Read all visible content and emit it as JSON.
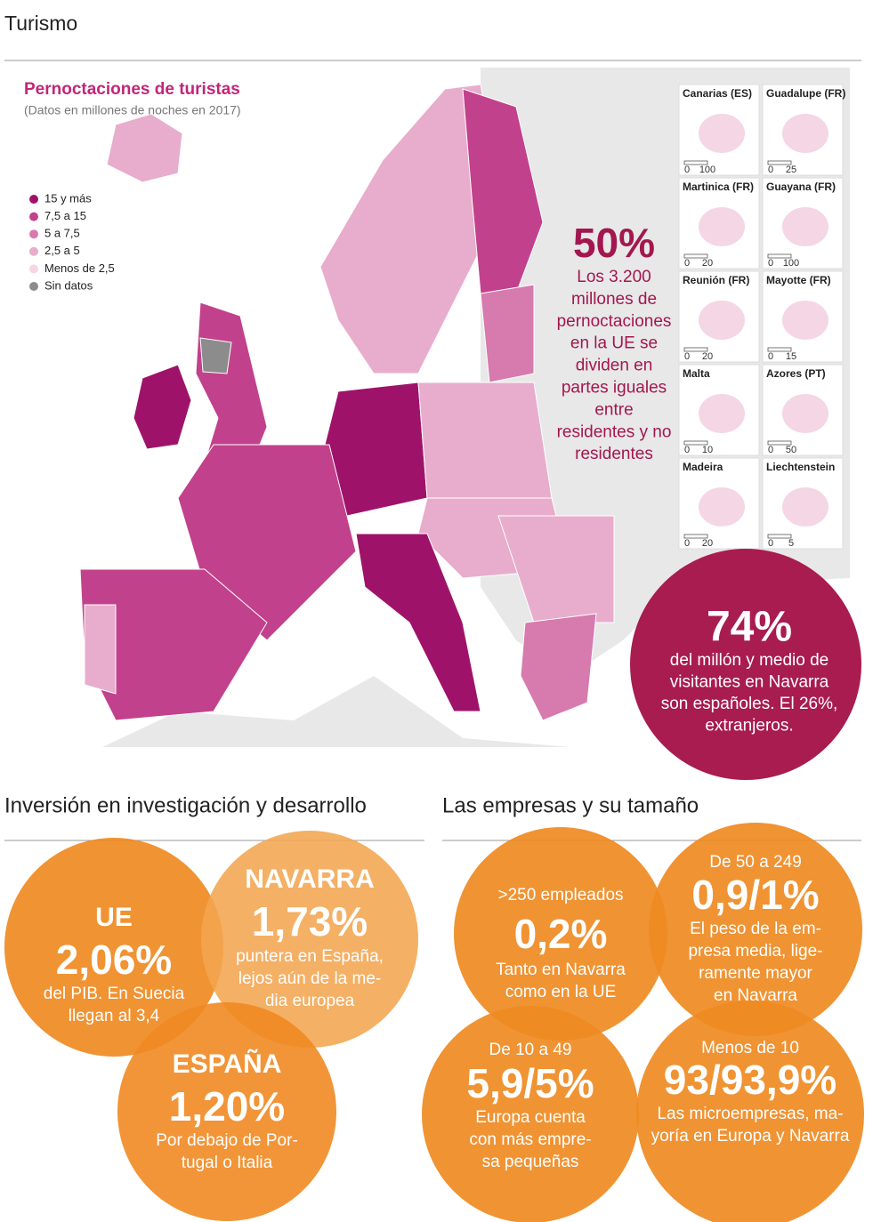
{
  "tourism": {
    "title": "Turismo",
    "map_title": "Pernoctaciones de turistas",
    "map_subtitle": "(Datos en millones de noches en 2017)",
    "legend": [
      {
        "label": "15 y más",
        "color": "#9e1369"
      },
      {
        "label": "7,5 a 15",
        "color": "#c2418c"
      },
      {
        "label": "5 a 7,5",
        "color": "#d77aae"
      },
      {
        "label": "2,5 a 5",
        "color": "#e8adcc"
      },
      {
        "label": "Menos de 2,5",
        "color": "#f4d6e5"
      },
      {
        "label": "Sin datos",
        "color": "#8c8c8c"
      }
    ],
    "stat_eu": {
      "value": "50%",
      "lines": [
        "Los 3.200",
        "millones de",
        "pernoctaciones",
        "en la UE se",
        "dividen en",
        "partes iguales",
        "entre",
        "residentes y no",
        "residentes"
      ]
    },
    "stat_navarra": {
      "value": "74%",
      "lines": [
        "del millón y medio de",
        "visitantes en Navarra",
        "son españoles. El 26%,",
        "extranjeros."
      ]
    },
    "insets": [
      {
        "name": "Canarias (ES)",
        "scale": [
          "0",
          "100"
        ]
      },
      {
        "name": "Guadalupe (FR)",
        "scale": [
          "0",
          "25"
        ]
      },
      {
        "name": "Martinica (FR)",
        "scale": [
          "0",
          "20"
        ]
      },
      {
        "name": "Guayana (FR)",
        "scale": [
          "0",
          "100"
        ]
      },
      {
        "name": "Reunión (FR)",
        "scale": [
          "0",
          "20"
        ]
      },
      {
        "name": "Mayotte (FR)",
        "scale": [
          "0",
          "15"
        ]
      },
      {
        "name": "Malta",
        "scale": [
          "0",
          "10"
        ]
      },
      {
        "name": "Azores (PT)",
        "scale": [
          "0",
          "50"
        ]
      },
      {
        "name": "Madeira",
        "scale": [
          "0",
          "20"
        ]
      },
      {
        "name": "Liechtenstein",
        "scale": [
          "0",
          "5"
        ]
      }
    ]
  },
  "rd": {
    "title": "Inversión en investigación y desarrollo",
    "circles": [
      {
        "heading": "UE",
        "value": "2,06%",
        "lines": [
          "del PIB. En Suecia",
          "llegan al 3,4"
        ]
      },
      {
        "heading": "NAVARRA",
        "value": "1,73%",
        "lines": [
          "puntera en España,",
          "lejos aún de la me-",
          "dia europea"
        ]
      },
      {
        "heading": "ESPAÑA",
        "value": "1,20%",
        "lines": [
          "Por debajo de Por-",
          "tugal o Italia"
        ]
      }
    ]
  },
  "companies": {
    "title": "Las empresas y su tamaño",
    "circles": [
      {
        "heading": ">250 empleados",
        "value": "0,2%",
        "lines": [
          "Tanto en Navarra",
          "como en la UE"
        ]
      },
      {
        "heading": "De 50 a 249",
        "value": "0,9/1%",
        "lines": [
          "El peso de la em-",
          "presa media, lige-",
          "ramente mayor",
          "en Navarra"
        ]
      },
      {
        "heading": "De 10 a 49",
        "value": "5,9/5%",
        "lines": [
          "Europa cuenta",
          "con más empre-",
          "sa pequeñas"
        ]
      },
      {
        "heading": "Menos de 10",
        "value": "93/93,9%",
        "lines": [
          "Las microempresas, ma-",
          "yoría en Europa y Navarra"
        ]
      }
    ]
  }
}
